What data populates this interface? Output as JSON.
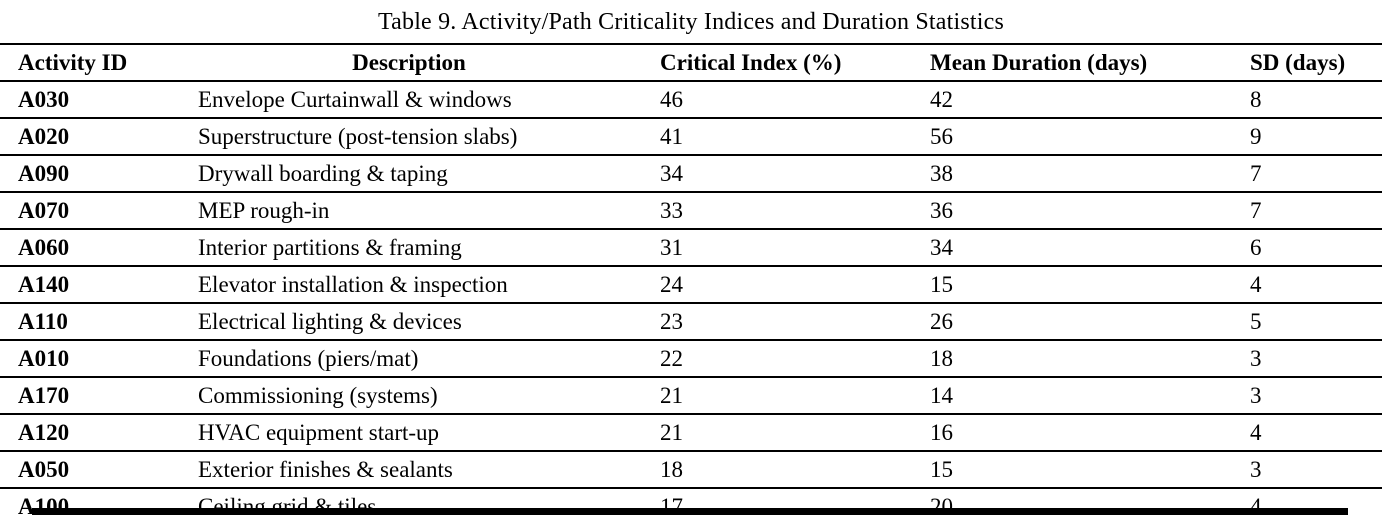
{
  "page": {
    "title": "Table 9. Activity/Path Criticality Indices and Duration Statistics"
  },
  "table": {
    "columns": [
      "Activity ID",
      "Description",
      "Critical Index (%)",
      "Mean Duration (days)",
      "SD (days)"
    ],
    "rows": [
      {
        "id": "A030",
        "description": "Envelope Curtainwall & windows",
        "critical_index": "46",
        "mean_duration": "42",
        "sd": "8"
      },
      {
        "id": "A020",
        "description": "Superstructure (post-tension slabs)",
        "critical_index": "41",
        "mean_duration": "56",
        "sd": "9"
      },
      {
        "id": "A090",
        "description": "Drywall boarding & taping",
        "critical_index": "34",
        "mean_duration": "38",
        "sd": "7"
      },
      {
        "id": "A070",
        "description": "MEP rough-in",
        "critical_index": "33",
        "mean_duration": "36",
        "sd": "7"
      },
      {
        "id": "A060",
        "description": "Interior partitions & framing",
        "critical_index": "31",
        "mean_duration": "34",
        "sd": "6"
      },
      {
        "id": "A140",
        "description": "Elevator installation & inspection",
        "critical_index": "24",
        "mean_duration": "15",
        "sd": "4"
      },
      {
        "id": "A110",
        "description": "Electrical lighting & devices",
        "critical_index": "23",
        "mean_duration": "26",
        "sd": "5"
      },
      {
        "id": "A010",
        "description": "Foundations (piers/mat)",
        "critical_index": "22",
        "mean_duration": "18",
        "sd": "3"
      },
      {
        "id": "A170",
        "description": "Commissioning (systems)",
        "critical_index": "21",
        "mean_duration": "14",
        "sd": "3"
      },
      {
        "id": "A120",
        "description": "HVAC equipment start-up",
        "critical_index": "21",
        "mean_duration": "16",
        "sd": "4"
      },
      {
        "id": "A050",
        "description": "Exterior finishes & sealants",
        "critical_index": "18",
        "mean_duration": "15",
        "sd": "3"
      },
      {
        "id": "A100",
        "description": "Ceiling grid & tiles",
        "critical_index": "17",
        "mean_duration": "20",
        "sd": "4"
      }
    ]
  }
}
